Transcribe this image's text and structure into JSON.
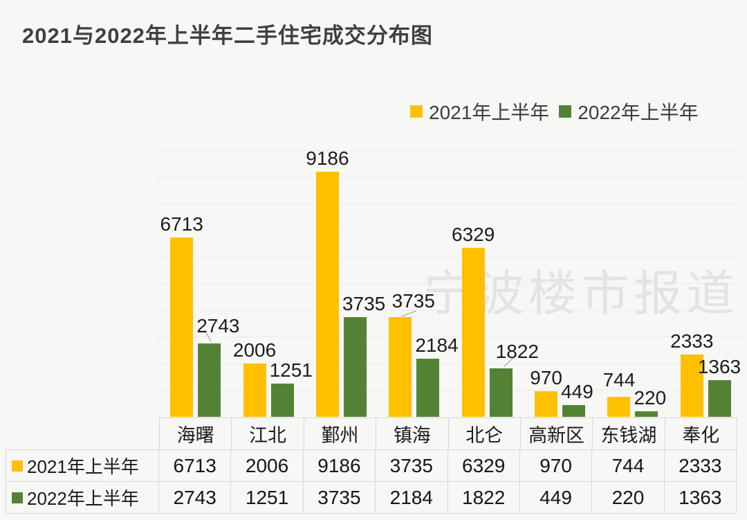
{
  "title": "2021与2022年上半年二手住宅成交分布图",
  "watermark": "宁波楼市报道",
  "legend": {
    "items": [
      {
        "label": "2021年上半年",
        "color": "#FFC000"
      },
      {
        "label": "2022年上半年",
        "color": "#548235"
      }
    ]
  },
  "chart_data": {
    "type": "bar",
    "title": "2021与2022年上半年二手住宅成交分布图",
    "categories": [
      "海曙",
      "江北",
      "鄞州",
      "镇海",
      "北仑",
      "高新区",
      "东钱湖",
      "奉化"
    ],
    "series": [
      {
        "name": "2021年上半年",
        "color": "#FFC000",
        "values": [
          6713,
          2006,
          9186,
          3735,
          6329,
          970,
          744,
          2333
        ]
      },
      {
        "name": "2022年上半年",
        "color": "#548235",
        "values": [
          2743,
          1251,
          3735,
          2184,
          1822,
          449,
          220,
          1363
        ]
      }
    ],
    "xlabel": "",
    "ylabel": "",
    "ylim": [
      0,
      10000
    ],
    "gridline_interval": 1000,
    "grid": true,
    "legend_position": "top-right",
    "data_labels": true,
    "data_table": true,
    "watermark_text": "宁波楼市报道"
  }
}
